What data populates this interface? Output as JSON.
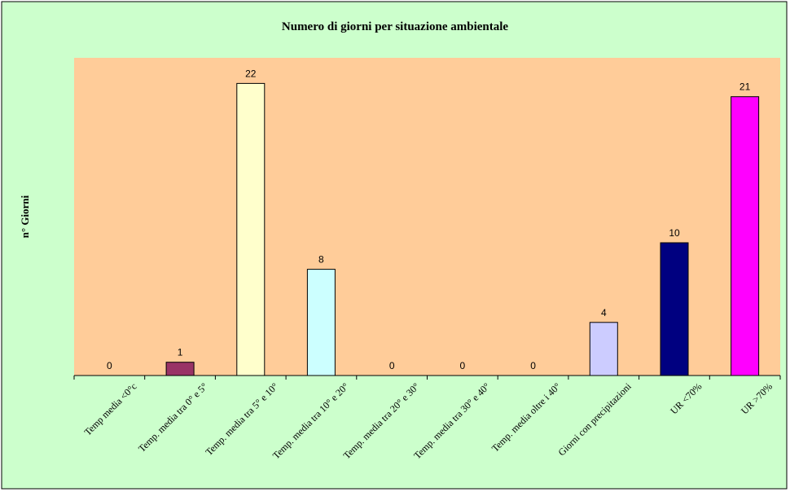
{
  "chart_data": {
    "type": "bar",
    "title": "Numero di giorni per situazione ambientale",
    "xlabel": "",
    "ylabel": "n° Giorni",
    "ylim": [
      0,
      22
    ],
    "grid": false,
    "legend": "none",
    "categories": [
      "Temp media <0°c",
      "Temp. media tra 0° e 5°",
      "Temp. media tra 5° e 10°",
      "Temp. media tra 10° e 20°",
      "Temp. media tra 20° e 30°",
      "Temp. media tra 30° e 40°",
      "Temp. media oltre i 40°",
      "Giorni con precipitazioni",
      "UR <70%",
      "UR >70%"
    ],
    "values": [
      0,
      1,
      22,
      8,
      0,
      0,
      0,
      4,
      10,
      21
    ],
    "bar_colors": [
      "#ffffff",
      "#993366",
      "#ffffcc",
      "#ccffff",
      "#ffffff",
      "#ffffff",
      "#ffffff",
      "#ccccff",
      "#000080",
      "#ff00ff"
    ],
    "colors": {
      "outer_background": "#ccffcc",
      "plot_background": "#ffcc99",
      "axis": "#000000",
      "bar_outline": "#000000"
    }
  }
}
